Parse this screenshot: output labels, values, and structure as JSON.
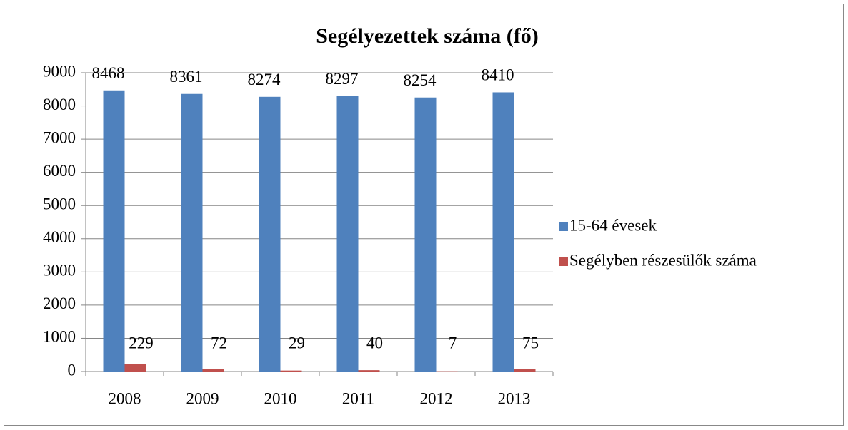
{
  "chart_data": {
    "type": "bar",
    "title": "Segélyezettek száma (fő)",
    "categories": [
      "2008",
      "2009",
      "2010",
      "2011",
      "2012",
      "2013"
    ],
    "series": [
      {
        "name": "15-64 évesek",
        "color": "#4f81bd",
        "values": [
          8468,
          8361,
          8274,
          8297,
          8254,
          8410
        ]
      },
      {
        "name": "Segélyben részesülők száma",
        "color": "#c0504d",
        "values": [
          229,
          72,
          29,
          40,
          7,
          75
        ]
      }
    ],
    "ylim": [
      0,
      9000
    ],
    "yticks": [
      0,
      1000,
      2000,
      3000,
      4000,
      5000,
      6000,
      7000,
      8000,
      9000
    ],
    "grid": true,
    "legend": "right"
  }
}
